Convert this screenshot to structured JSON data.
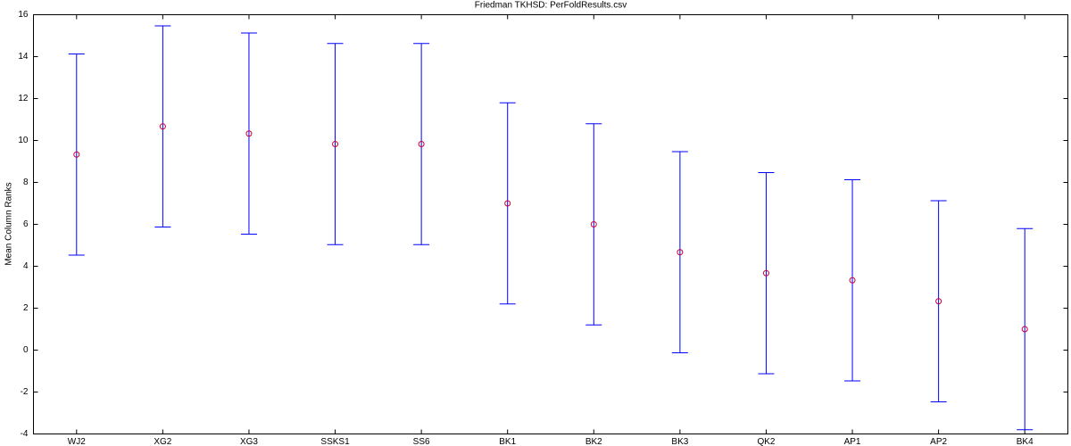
{
  "chart_data": {
    "type": "errorbar",
    "title": "Friedman TKHSD: PerFoldResults.csv",
    "y_label": "Mean Column Ranks",
    "categories": [
      "WJ2",
      "XG2",
      "XG3",
      "SSKS1",
      "SS6",
      "BK1",
      "BK2",
      "BK3",
      "QK2",
      "AP1",
      "AP2",
      "BK4"
    ],
    "values": [
      9.33,
      10.67,
      10.33,
      9.83,
      9.83,
      7.0,
      6.0,
      4.67,
      3.67,
      3.33,
      2.33,
      1.0
    ],
    "errors": [
      4.8,
      4.8,
      4.8,
      4.8,
      4.8,
      4.8,
      4.8,
      4.8,
      4.8,
      4.8,
      4.8,
      4.8
    ],
    "bar_color": "#0000ff",
    "marker_color": "#cc0033",
    "ylim": [
      -4,
      16
    ],
    "yticks": [
      -4,
      -2,
      0,
      2,
      4,
      6,
      8,
      10,
      12,
      14,
      16
    ]
  }
}
